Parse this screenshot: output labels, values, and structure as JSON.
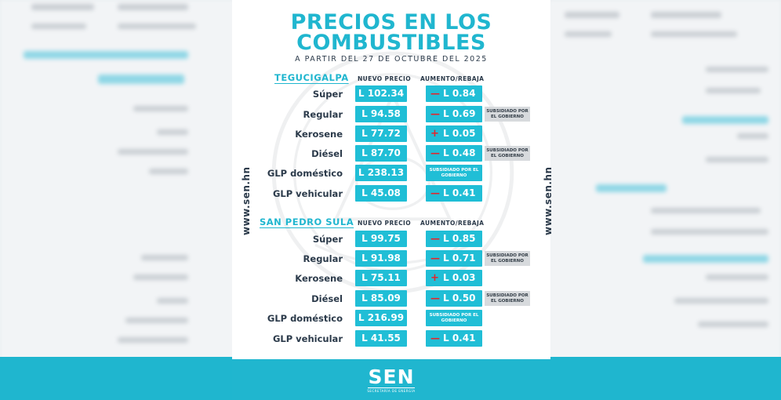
{
  "poster": {
    "title_line1": "PRECIOS EN LOS",
    "title_line2": "COMBUSTIBLES",
    "subtitle": "A PARTIR DEL 27 DE OCTUBRE DEL 2025",
    "side_url": "www.sen.hn",
    "logo": "SEN",
    "logo_subtitle": "SECRETARÍA DE ENERGÍA",
    "col_price": "NUEVO PRECIO",
    "col_change": "AUMENTO/REBAJA",
    "subsidy_note": "SUBSIDIADO POR EL GOBIERNO",
    "colors": {
      "accent": "#20b6cf",
      "box": "#20bed6",
      "increase_sign": "#e5242b",
      "note_bg": "#d7dadd",
      "text": "#2b3a4a"
    }
  },
  "cities": [
    {
      "name": "TEGUCIGALPA",
      "rows": [
        {
          "label": "Súper",
          "price": "L 102.34",
          "sign": "—",
          "change": "L 0.84",
          "note": ""
        },
        {
          "label": "Regular",
          "price": "L 94.58",
          "sign": "—",
          "change": "L 0.69",
          "note": "SUBSIDIADO POR EL GOBIERNO"
        },
        {
          "label": "Kerosene",
          "price": "L 77.72",
          "sign": "+",
          "change": "L 0.05",
          "note": ""
        },
        {
          "label": "Diésel",
          "price": "L 87.70",
          "sign": "—",
          "change": "L 0.48",
          "note": "SUBSIDIADO POR EL GOBIERNO"
        },
        {
          "label": "GLP doméstico",
          "price": "L 238.13",
          "sign": "",
          "change": "SUBSIDIADO POR EL GOBIERNO",
          "note": ""
        },
        {
          "label": "GLP vehicular",
          "price": "L 45.08",
          "sign": "—",
          "change": "L 0.41",
          "note": ""
        }
      ]
    },
    {
      "name": "SAN PEDRO SULA",
      "rows": [
        {
          "label": "Súper",
          "price": "L 99.75",
          "sign": "—",
          "change": "L 0.85",
          "note": ""
        },
        {
          "label": "Regular",
          "price": "L 91.98",
          "sign": "—",
          "change": "L 0.71",
          "note": "SUBSIDIADO POR EL GOBIERNO"
        },
        {
          "label": "Kerosene",
          "price": "L 75.11",
          "sign": "+",
          "change": "L 0.03",
          "note": ""
        },
        {
          "label": "Diésel",
          "price": "L 85.09",
          "sign": "—",
          "change": "L 0.50",
          "note": "SUBSIDIADO POR EL GOBIERNO"
        },
        {
          "label": "GLP doméstico",
          "price": "L 216.99",
          "sign": "",
          "change": "SUBSIDIADO POR EL GOBIERNO",
          "note": ""
        },
        {
          "label": "GLP vehicular",
          "price": "L 41.55",
          "sign": "—",
          "change": "L 0.41",
          "note": ""
        }
      ]
    }
  ]
}
